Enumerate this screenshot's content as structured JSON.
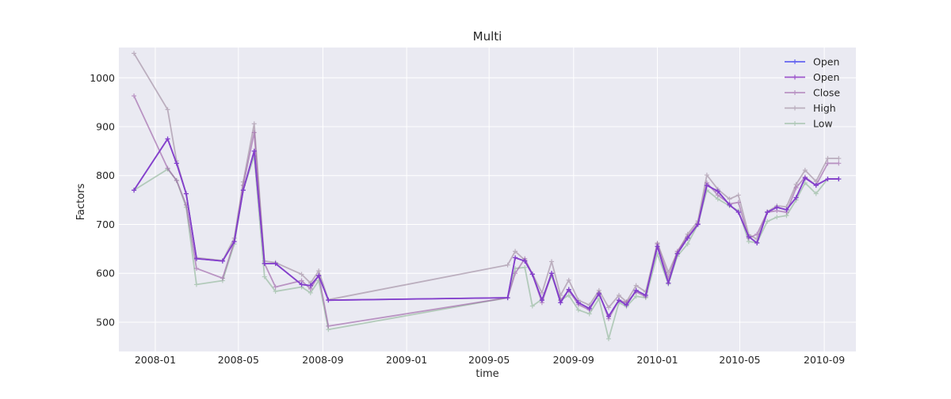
{
  "chart_data": {
    "type": "line",
    "title": "Multi",
    "xlabel": "time",
    "ylabel": "Factors",
    "xlim": [
      "2007-11-09",
      "2010-10-17"
    ],
    "ylim": [
      440,
      1062
    ],
    "grid": true,
    "legend_position": "top-right",
    "x_ticks": [
      "2008-01",
      "2008-05",
      "2008-09",
      "2009-01",
      "2009-05",
      "2009-09",
      "2010-01",
      "2010-05",
      "2010-09"
    ],
    "y_ticks": [
      500,
      600,
      700,
      800,
      900,
      1000
    ],
    "x": [
      "2007-12-01",
      "2008-01-19",
      "2008-02-01",
      "2008-02-15",
      "2008-03-01",
      "2008-04-08",
      "2008-04-25",
      "2008-05-08",
      "2008-05-24",
      "2008-06-08",
      "2008-06-24",
      "2008-08-01",
      "2008-08-14",
      "2008-08-26",
      "2008-09-09",
      "2009-05-28",
      "2009-06-08",
      "2009-06-22",
      "2009-07-03",
      "2009-07-17",
      "2009-07-31",
      "2009-08-13",
      "2009-08-25",
      "2009-09-08",
      "2009-09-24",
      "2009-10-08",
      "2009-10-22",
      "2009-11-06",
      "2009-11-17",
      "2009-12-01",
      "2009-12-15",
      "2010-01-01",
      "2010-01-17",
      "2010-01-30",
      "2010-02-14",
      "2010-03-01",
      "2010-03-14",
      "2010-03-30",
      "2010-04-16",
      "2010-04-29",
      "2010-05-14",
      "2010-05-26",
      "2010-06-10",
      "2010-06-24",
      "2010-07-08",
      "2010-07-22",
      "2010-08-04",
      "2010-08-20",
      "2010-09-06",
      "2010-09-22"
    ],
    "series": [
      {
        "name": "Open",
        "color": "#4c4cf0",
        "opacity": 0.85,
        "values": [
          770,
          875,
          825,
          763,
          630,
          625,
          665,
          770,
          850,
          620,
          620,
          577,
          575,
          595,
          545,
          550,
          632,
          625,
          598,
          545,
          600,
          540,
          567,
          540,
          528,
          558,
          512,
          545,
          535,
          565,
          555,
          655,
          580,
          640,
          672,
          700,
          780,
          768,
          740,
          725,
          675,
          662,
          725,
          735,
          730,
          755,
          795,
          780,
          793,
          793
        ]
      },
      {
        "name": "Open",
        "color": "#8e3ac4",
        "opacity": 0.85,
        "values": [
          770,
          875,
          825,
          763,
          630,
          625,
          665,
          770,
          850,
          620,
          620,
          577,
          575,
          595,
          545,
          550,
          632,
          625,
          598,
          545,
          600,
          540,
          567,
          540,
          528,
          558,
          512,
          545,
          535,
          565,
          555,
          655,
          580,
          640,
          672,
          700,
          780,
          768,
          740,
          725,
          675,
          662,
          725,
          735,
          730,
          755,
          795,
          780,
          793,
          793
        ]
      },
      {
        "name": "Close",
        "color": "#9a5ba4",
        "opacity": 0.6,
        "values": [
          963,
          815,
          790,
          740,
          610,
          590,
          665,
          780,
          888,
          620,
          572,
          585,
          568,
          596,
          492,
          550,
          600,
          630,
          598,
          540,
          600,
          545,
          565,
          536,
          525,
          560,
          507,
          545,
          540,
          562,
          552,
          660,
          590,
          645,
          675,
          702,
          785,
          760,
          742,
          745,
          672,
          680,
          725,
          728,
          725,
          775,
          797,
          780,
          825,
          825
        ]
      },
      {
        "name": "High",
        "color": "#9c879c",
        "opacity": 0.6,
        "values": [
          1050,
          935,
          830,
          763,
          632,
          626,
          672,
          787,
          906,
          625,
          622,
          598,
          580,
          605,
          546,
          617,
          645,
          627,
          599,
          560,
          624,
          555,
          586,
          545,
          535,
          565,
          530,
          555,
          542,
          575,
          562,
          662,
          602,
          642,
          680,
          707,
          801,
          772,
          752,
          760,
          679,
          670,
          726,
          738,
          736,
          782,
          811,
          788,
          835,
          835
        ]
      },
      {
        "name": "Low",
        "color": "#8db595",
        "opacity": 0.6,
        "values": [
          770,
          813,
          790,
          735,
          577,
          585,
          660,
          770,
          840,
          593,
          563,
          572,
          560,
          585,
          485,
          550,
          610,
          612,
          533,
          547,
          595,
          545,
          555,
          525,
          517,
          548,
          466,
          540,
          532,
          553,
          550,
          640,
          578,
          635,
          660,
          700,
          770,
          752,
          738,
          728,
          665,
          663,
          706,
          715,
          718,
          750,
          785,
          763,
          793,
          793
        ]
      }
    ]
  }
}
